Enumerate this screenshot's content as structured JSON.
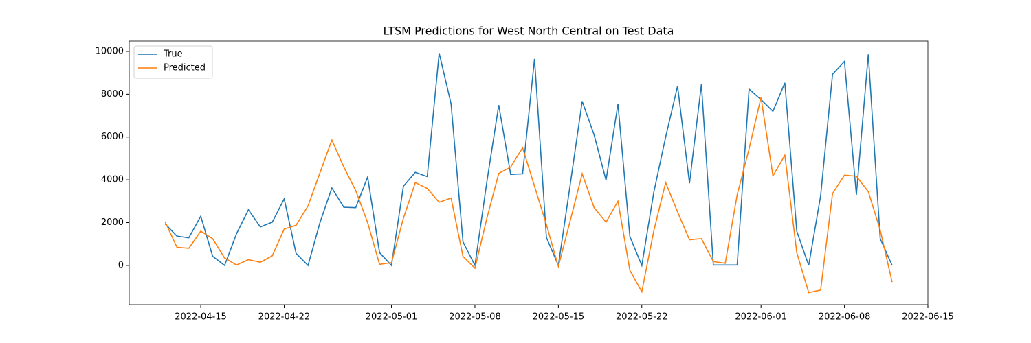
{
  "chart_data": {
    "type": "line",
    "title": "LTSM Predictions for West North Central on Test Data",
    "x": [
      "2022-04-12",
      "2022-04-13",
      "2022-04-14",
      "2022-04-15",
      "2022-04-16",
      "2022-04-17",
      "2022-04-18",
      "2022-04-19",
      "2022-04-20",
      "2022-04-21",
      "2022-04-22",
      "2022-04-23",
      "2022-04-24",
      "2022-04-25",
      "2022-04-26",
      "2022-04-27",
      "2022-04-28",
      "2022-04-29",
      "2022-04-30",
      "2022-05-01",
      "2022-05-02",
      "2022-05-03",
      "2022-05-04",
      "2022-05-05",
      "2022-05-06",
      "2022-05-07",
      "2022-05-08",
      "2022-05-09",
      "2022-05-10",
      "2022-05-11",
      "2022-05-12",
      "2022-05-13",
      "2022-05-14",
      "2022-05-15",
      "2022-05-16",
      "2022-05-17",
      "2022-05-18",
      "2022-05-19",
      "2022-05-20",
      "2022-05-21",
      "2022-05-22",
      "2022-05-23",
      "2022-05-24",
      "2022-05-25",
      "2022-05-26",
      "2022-05-27",
      "2022-05-28",
      "2022-05-29",
      "2022-05-30",
      "2022-05-31",
      "2022-06-01",
      "2022-06-02",
      "2022-06-03",
      "2022-06-04",
      "2022-06-05",
      "2022-06-06",
      "2022-06-07",
      "2022-06-08",
      "2022-06-09",
      "2022-06-10",
      "2022-06-11",
      "2022-06-12"
    ],
    "series": [
      {
        "name": "True",
        "color": "#1f77b4",
        "values": [
          1950,
          1370,
          1290,
          2300,
          430,
          0,
          1480,
          2600,
          1800,
          2020,
          3110,
          560,
          0,
          2000,
          3620,
          2720,
          2700,
          4130,
          600,
          0,
          3700,
          4350,
          4150,
          9920,
          7550,
          1100,
          0,
          3900,
          7490,
          4250,
          4280,
          9650,
          1300,
          0,
          3800,
          7670,
          6100,
          3980,
          7540,
          1350,
          0,
          3400,
          6000,
          8380,
          3840,
          8460,
          20,
          20,
          20,
          8240,
          7750,
          7200,
          8530,
          1600,
          0,
          3250,
          8930,
          9530,
          3300,
          9860,
          1250,
          0
        ]
      },
      {
        "name": "Predicted",
        "color": "#ff7f0e",
        "values": [
          2050,
          850,
          800,
          1600,
          1250,
          350,
          20,
          270,
          150,
          450,
          1700,
          1880,
          2780,
          4330,
          5860,
          4600,
          3500,
          2000,
          50,
          130,
          2200,
          3870,
          3600,
          2950,
          3150,
          420,
          -130,
          2200,
          4300,
          4600,
          5500,
          3700,
          1900,
          -50,
          2100,
          4280,
          2700,
          2020,
          3000,
          -230,
          -1230,
          1600,
          3870,
          2500,
          1200,
          1250,
          180,
          100,
          3300,
          5450,
          7850,
          4180,
          5150,
          600,
          -1270,
          -1150,
          3360,
          4220,
          4170,
          3450,
          1650,
          -780
        ]
      }
    ],
    "xlim": [
      "2022-04-09",
      "2022-06-15"
    ],
    "xticks": [
      "2022-04-15",
      "2022-04-22",
      "2022-05-01",
      "2022-05-08",
      "2022-05-15",
      "2022-05-22",
      "2022-06-01",
      "2022-06-08",
      "2022-06-15"
    ],
    "ylim": [
      -1830,
      10480
    ],
    "yticks": [
      0,
      2000,
      4000,
      6000,
      8000,
      10000
    ],
    "legend": "upper left",
    "grid": false
  }
}
